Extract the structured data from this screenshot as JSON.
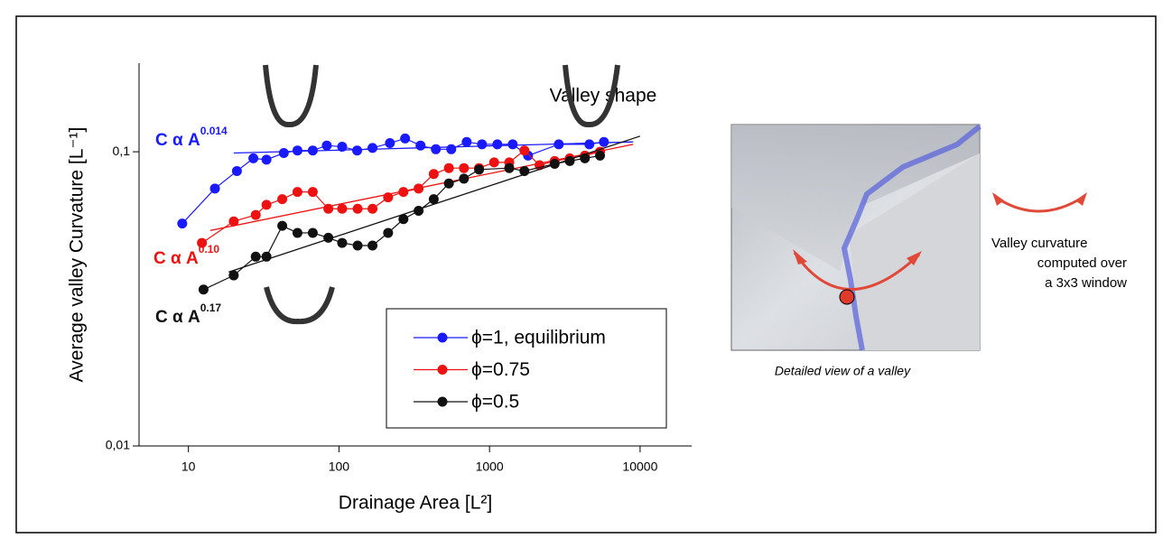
{
  "chart_data": {
    "type": "line",
    "x_label": "Drainage Area [L²]",
    "y_label": "Average valley Curvature [L⁻¹]",
    "log_x": true,
    "log_y": true,
    "xlim": [
      4.7,
      22000
    ],
    "ylim": [
      0.01,
      0.2
    ],
    "xticks": [
      10,
      100,
      1000,
      10000
    ],
    "yticks": [
      {
        "value": 0.01,
        "label": "0,01"
      },
      {
        "value": 0.1,
        "label": "0,1"
      }
    ],
    "annotation": "Valley shape",
    "series": [
      {
        "name": "ϕ=1, equilibrium",
        "color": "#1a1aff",
        "x": [
          9.1,
          15,
          21,
          27,
          33,
          43,
          53,
          67,
          83,
          105,
          132,
          167,
          218,
          275,
          348,
          440,
          557,
          705,
          891,
          1127,
          1425,
          1803,
          2884,
          4603,
          5750
        ],
        "values": [
          0.057,
          0.075,
          0.086,
          0.095,
          0.094,
          0.099,
          0.101,
          0.101,
          0.105,
          0.104,
          0.101,
          0.103,
          0.107,
          0.111,
          0.105,
          0.102,
          0.102,
          0.108,
          0.106,
          0.106,
          0.106,
          0.097,
          0.106,
          0.106,
          0.108
        ],
        "fit_x": [
          20,
          9000
        ],
        "fit_y": [
          0.099,
          0.108
        ],
        "fit_label": "C α A",
        "fit_exponent": "0.014"
      },
      {
        "name": "ϕ=0.75",
        "color": "#ee1111",
        "x": [
          12.3,
          20,
          28,
          33,
          42,
          53,
          67,
          85,
          105,
          133,
          167,
          212,
          268,
          338,
          426,
          537,
          676,
          852,
          1073,
          1352,
          1704,
          2148,
          2707,
          3411,
          4299,
          5418
        ],
        "values": [
          0.049,
          0.058,
          0.061,
          0.066,
          0.069,
          0.073,
          0.073,
          0.064,
          0.064,
          0.064,
          0.064,
          0.07,
          0.073,
          0.075,
          0.084,
          0.088,
          0.088,
          0.088,
          0.092,
          0.092,
          0.101,
          0.09,
          0.093,
          0.095,
          0.097,
          0.1
        ],
        "fit_x": [
          14,
          9000
        ],
        "fit_y": [
          0.054,
          0.106
        ],
        "fit_label": "C α A",
        "fit_exponent": "0.10"
      },
      {
        "name": "ϕ=0.5",
        "color": "#111111",
        "x": [
          12.6,
          20,
          28,
          33,
          42,
          53,
          67,
          85,
          105,
          133,
          167,
          212,
          268,
          338,
          426,
          537,
          676,
          852,
          1352,
          1704,
          2707,
          3411,
          4299,
          5418
        ],
        "values": [
          0.034,
          0.038,
          0.044,
          0.044,
          0.056,
          0.053,
          0.053,
          0.051,
          0.049,
          0.048,
          0.048,
          0.053,
          0.059,
          0.063,
          0.069,
          0.078,
          0.081,
          0.087,
          0.088,
          0.086,
          0.091,
          0.093,
          0.095,
          0.097
        ],
        "fit_x": [
          18.5,
          10000
        ],
        "fit_y": [
          0.039,
          0.113
        ],
        "fit_label": "C α A",
        "fit_exponent": "0.17"
      }
    ],
    "inset_caption": "Detailed view of a valley",
    "inset_note": [
      "Valley curvature",
      "computed over",
      "a 3x3 window"
    ]
  }
}
